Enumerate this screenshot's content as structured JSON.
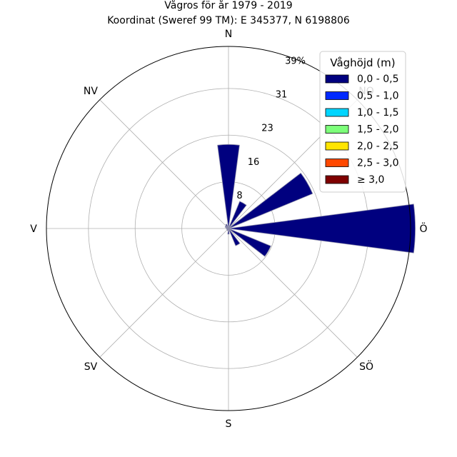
{
  "title_line1": "Vågros för år 1979 - 2019",
  "title_line2": "Koordinat (Sweref 99 TM): E 345377, N 6198806",
  "chart_data": {
    "type": "polar-bar",
    "title": "Vågros för år 1979 - 2019",
    "subtitle": "Koordinat (Sweref 99 TM): E 345377, N 6198806",
    "direction_labels": [
      "N",
      "NO",
      "Ö",
      "SÖ",
      "S",
      "SV",
      "V",
      "NV"
    ],
    "radial_ticks": [
      "8",
      "16",
      "23",
      "31",
      "39%"
    ],
    "rmax": 39,
    "grid": true,
    "legend_title": "Våghöjd (m)",
    "legend_position": "top-right",
    "bins": [
      {
        "label": "0,0 - 0,5",
        "color": "#00007f"
      },
      {
        "label": "0,5 - 1,0",
        "color": "#0029ff"
      },
      {
        "label": "1,0 - 1,5",
        "color": "#00d5ff"
      },
      {
        "label": "1,5 - 2,0",
        "color": "#7dff7a"
      },
      {
        "label": "2,0 - 2,5",
        "color": "#ffe500"
      },
      {
        "label": "2,5 - 3,0",
        "color": "#ff4800"
      },
      {
        "label": "≥ 3,0",
        "color": "#7f0000"
      }
    ],
    "sector_width_deg": 15,
    "sectors": [
      {
        "direction_deg": 0,
        "values": [
          18.0,
          0,
          0,
          0,
          0,
          0,
          0
        ]
      },
      {
        "direction_deg": 30,
        "values": [
          6.3,
          0,
          0,
          0,
          0,
          0,
          0
        ]
      },
      {
        "direction_deg": 60,
        "values": [
          5.2,
          0,
          0,
          0,
          0,
          0,
          0
        ]
      },
      {
        "direction_deg": 90,
        "values": [
          40.0,
          0,
          0,
          0,
          0,
          0,
          0
        ]
      },
      {
        "direction_deg": 60,
        "values": [
          19.5,
          0,
          0,
          0,
          0,
          0,
          0
        ]
      },
      {
        "direction_deg": 120,
        "values": [
          9.8,
          0,
          0,
          0,
          0,
          0,
          0
        ]
      },
      {
        "direction_deg": 150,
        "values": [
          4.0,
          0,
          0,
          0,
          0,
          0,
          0
        ]
      },
      {
        "direction_deg": 180,
        "values": [
          1.2,
          0,
          0,
          0,
          0,
          0,
          0
        ]
      },
      {
        "direction_deg": 210,
        "values": [
          0.5,
          0,
          0,
          0,
          0,
          0,
          0
        ]
      },
      {
        "direction_deg": 240,
        "values": [
          0.4,
          0,
          0,
          0,
          0,
          0,
          0
        ]
      },
      {
        "direction_deg": 270,
        "values": [
          0.5,
          0,
          0,
          0,
          0,
          0,
          0
        ]
      },
      {
        "direction_deg": 300,
        "values": [
          0.8,
          0,
          0,
          0,
          0,
          0,
          0
        ]
      },
      {
        "direction_deg": 330,
        "values": [
          1.0,
          0,
          0,
          0,
          0,
          0,
          0
        ]
      }
    ]
  }
}
